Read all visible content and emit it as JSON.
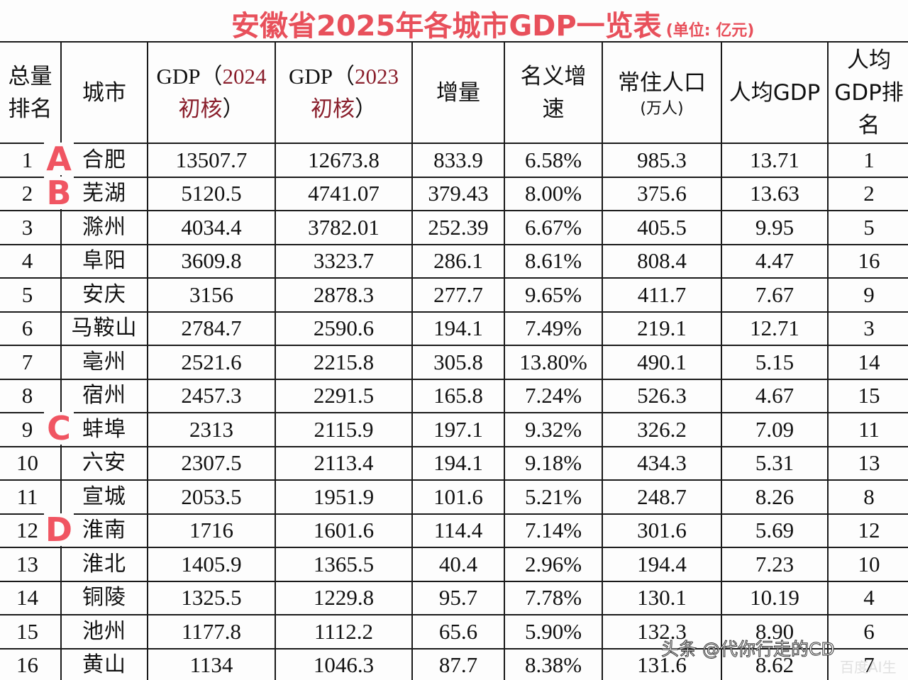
{
  "title": {
    "main": "安徽省2025年各城市GDP一览表",
    "unit": "(单位: 亿元)",
    "color": "#e8505b"
  },
  "table": {
    "headers": {
      "rank": [
        "总量",
        "排名"
      ],
      "city": "城市",
      "gdp_current": {
        "prefix": "GDP（",
        "year": "2024",
        "suffix_red": "初核",
        "close": "）"
      },
      "gdp_previous": {
        "prefix": "GDP（",
        "year": "2023",
        "suffix_red": "初核",
        "close": "）"
      },
      "increase": "增量",
      "nominal_growth": [
        "名义增",
        "速"
      ],
      "population": {
        "main": "常住人口",
        "sub": "(万人)"
      },
      "per_capita_gdp": "人均GDP",
      "per_capita_rank": [
        "人均",
        "GDP排",
        "名"
      ]
    },
    "rows": [
      {
        "rank": "1",
        "city": "合肥",
        "gdp_current": "13507.7",
        "gdp_previous": "12673.8",
        "increase": "833.9",
        "growth": "6.58%",
        "population": "985.3",
        "per_capita": "13.71",
        "per_capita_rank": "1"
      },
      {
        "rank": "2",
        "city": "芜湖",
        "gdp_current": "5120.5",
        "gdp_previous": "4741.07",
        "increase": "379.43",
        "growth": "8.00%",
        "population": "375.6",
        "per_capita": "13.63",
        "per_capita_rank": "2"
      },
      {
        "rank": "3",
        "city": "滁州",
        "gdp_current": "4034.4",
        "gdp_previous": "3782.01",
        "increase": "252.39",
        "growth": "6.67%",
        "population": "405.5",
        "per_capita": "9.95",
        "per_capita_rank": "5"
      },
      {
        "rank": "4",
        "city": "阜阳",
        "gdp_current": "3609.8",
        "gdp_previous": "3323.7",
        "increase": "286.1",
        "growth": "8.61%",
        "population": "808.4",
        "per_capita": "4.47",
        "per_capita_rank": "16"
      },
      {
        "rank": "5",
        "city": "安庆",
        "gdp_current": "3156",
        "gdp_previous": "2878.3",
        "increase": "277.7",
        "growth": "9.65%",
        "population": "411.7",
        "per_capita": "7.67",
        "per_capita_rank": "9"
      },
      {
        "rank": "6",
        "city": "马鞍山",
        "gdp_current": "2784.7",
        "gdp_previous": "2590.6",
        "increase": "194.1",
        "growth": "7.49%",
        "population": "219.1",
        "per_capita": "12.71",
        "per_capita_rank": "3"
      },
      {
        "rank": "7",
        "city": "亳州",
        "gdp_current": "2521.6",
        "gdp_previous": "2215.8",
        "increase": "305.8",
        "growth": "13.80%",
        "population": "490.1",
        "per_capita": "5.15",
        "per_capita_rank": "14"
      },
      {
        "rank": "8",
        "city": "宿州",
        "gdp_current": "2457.3",
        "gdp_previous": "2291.5",
        "increase": "165.8",
        "growth": "7.24%",
        "population": "526.3",
        "per_capita": "4.67",
        "per_capita_rank": "15"
      },
      {
        "rank": "9",
        "city": "蚌埠",
        "gdp_current": "2313",
        "gdp_previous": "2115.9",
        "increase": "197.1",
        "growth": "9.32%",
        "population": "326.2",
        "per_capita": "7.09",
        "per_capita_rank": "11"
      },
      {
        "rank": "10",
        "city": "六安",
        "gdp_current": "2307.5",
        "gdp_previous": "2113.4",
        "increase": "194.1",
        "growth": "9.18%",
        "population": "434.3",
        "per_capita": "5.31",
        "per_capita_rank": "13"
      },
      {
        "rank": "11",
        "city": "宣城",
        "gdp_current": "2053.5",
        "gdp_previous": "1951.9",
        "increase": "101.6",
        "growth": "5.21%",
        "population": "248.7",
        "per_capita": "8.26",
        "per_capita_rank": "8"
      },
      {
        "rank": "12",
        "city": "淮南",
        "gdp_current": "1716",
        "gdp_previous": "1601.6",
        "increase": "114.4",
        "growth": "7.14%",
        "population": "301.6",
        "per_capita": "5.69",
        "per_capita_rank": "12"
      },
      {
        "rank": "13",
        "city": "淮北",
        "gdp_current": "1405.9",
        "gdp_previous": "1365.5",
        "increase": "40.4",
        "growth": "2.96%",
        "population": "194.4",
        "per_capita": "7.23",
        "per_capita_rank": "10"
      },
      {
        "rank": "14",
        "city": "铜陵",
        "gdp_current": "1325.5",
        "gdp_previous": "1229.8",
        "increase": "95.7",
        "growth": "7.78%",
        "population": "130.1",
        "per_capita": "10.19",
        "per_capita_rank": "4"
      },
      {
        "rank": "15",
        "city": "池州",
        "gdp_current": "1177.8",
        "gdp_previous": "1112.2",
        "increase": "65.6",
        "growth": "5.90%",
        "population": "132.3",
        "per_capita": "8.90",
        "per_capita_rank": "6"
      },
      {
        "rank": "16",
        "city": "黄山",
        "gdp_current": "1134",
        "gdp_previous": "1046.3",
        "increase": "87.7",
        "growth": "8.38%",
        "population": "131.6",
        "per_capita": "8.62",
        "per_capita_rank": "7"
      }
    ]
  },
  "markers": [
    {
      "label": "A",
      "row": 1
    },
    {
      "label": "B",
      "row": 2
    },
    {
      "label": "C",
      "row": 9
    },
    {
      "label": "D",
      "row": 12
    }
  ],
  "watermark": {
    "text": "头条 @代你行走的CD",
    "secondary": "百度AI生"
  }
}
